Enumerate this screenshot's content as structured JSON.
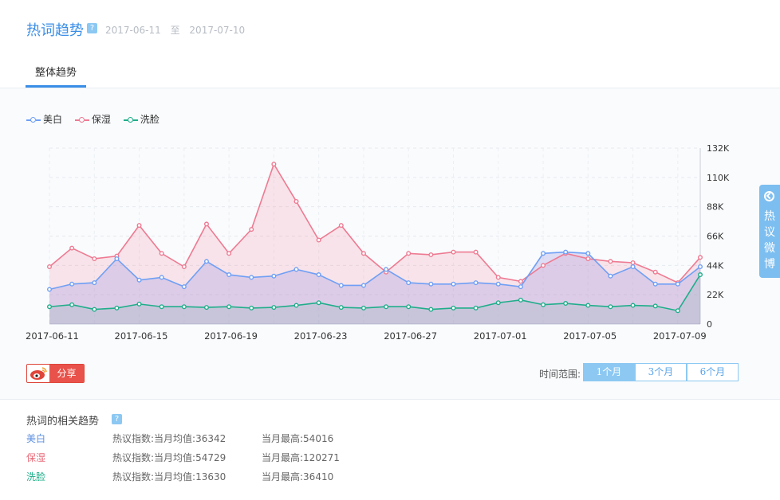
{
  "header": {
    "title": "热词趋势",
    "help_icon": "?",
    "date_from": "2017-06-11",
    "date_sep": "至",
    "date_to": "2017-07-10",
    "tab": "整体趋势"
  },
  "legend": [
    {
      "name": "美白",
      "color": "#6f9ff5"
    },
    {
      "name": "保湿",
      "color": "#ee7a92"
    },
    {
      "name": "洗脸",
      "color": "#1fae8a"
    }
  ],
  "chart_data": {
    "type": "area",
    "x": [
      "2017-06-11",
      "2017-06-12",
      "2017-06-13",
      "2017-06-14",
      "2017-06-15",
      "2017-06-16",
      "2017-06-17",
      "2017-06-18",
      "2017-06-19",
      "2017-06-20",
      "2017-06-21",
      "2017-06-22",
      "2017-06-23",
      "2017-06-24",
      "2017-06-25",
      "2017-06-26",
      "2017-06-27",
      "2017-06-28",
      "2017-06-29",
      "2017-06-30",
      "2017-07-01",
      "2017-07-02",
      "2017-07-03",
      "2017-07-04",
      "2017-07-05",
      "2017-07-06",
      "2017-07-07",
      "2017-07-08",
      "2017-07-09",
      "2017-07-10"
    ],
    "x_tick_labels": [
      "2017-06-11",
      "2017-06-15",
      "2017-06-19",
      "2017-06-23",
      "2017-06-27",
      "2017-07-01",
      "2017-07-05",
      "2017-07-09"
    ],
    "y_tick_labels": [
      "0",
      "22K",
      "44K",
      "66K",
      "88K",
      "110K",
      "132K"
    ],
    "ylim": [
      0,
      132000
    ],
    "grid": true,
    "legend_position": "top-left",
    "series": [
      {
        "name": "美白",
        "color": "#6f9ff5",
        "fill": "rgba(150,145,225,0.28)",
        "values": [
          26000,
          30000,
          31000,
          49000,
          33000,
          35000,
          28000,
          47000,
          37000,
          35000,
          36000,
          41000,
          37000,
          29000,
          29000,
          41000,
          31000,
          30000,
          30000,
          31000,
          30000,
          28000,
          53000,
          54000,
          53000,
          36000,
          43000,
          30000,
          30000,
          43000
        ]
      },
      {
        "name": "保湿",
        "color": "#ee7a92",
        "fill": "rgba(238,122,146,0.18)",
        "values": [
          43000,
          57000,
          49000,
          51000,
          74000,
          53000,
          43000,
          75000,
          53000,
          71000,
          120000,
          92000,
          63000,
          74000,
          53000,
          39000,
          53000,
          52000,
          54000,
          54000,
          35000,
          32000,
          44000,
          53000,
          49000,
          47000,
          46000,
          39000,
          31000,
          50000
        ]
      },
      {
        "name": "洗脸",
        "color": "#1fae8a",
        "fill": "rgba(140,175,185,0.25)",
        "values": [
          13000,
          14500,
          11000,
          12000,
          15000,
          13000,
          13000,
          12500,
          13000,
          12000,
          12500,
          14000,
          16000,
          12500,
          12000,
          13000,
          13000,
          11000,
          12000,
          12000,
          16000,
          18000,
          14500,
          15500,
          14000,
          13000,
          14000,
          13500,
          10000,
          37000
        ]
      }
    ]
  },
  "share": {
    "label": "分享",
    "icon": "weibo-icon"
  },
  "time_range": {
    "label": "时间范围:",
    "options": [
      "1个月",
      "3个月",
      "6个月"
    ],
    "selected": "1个月"
  },
  "related": {
    "title": "热词的相关趋势",
    "help_icon": "?",
    "rows": [
      {
        "name": "美白",
        "color": "#5a8ee0",
        "avg": "热议指数:当月均值:36342",
        "max": "当月最高:54016"
      },
      {
        "name": "保湿",
        "color": "#e86a78",
        "avg": "热议指数:当月均值:54729",
        "max": "当月最高:120271"
      },
      {
        "name": "洗脸",
        "color": "#1fae8a",
        "avg": "热议指数:当月均值:13630",
        "max": "当月最高:36410"
      }
    ]
  },
  "side_tab": {
    "label": "热议微博",
    "icon": "back-icon"
  }
}
